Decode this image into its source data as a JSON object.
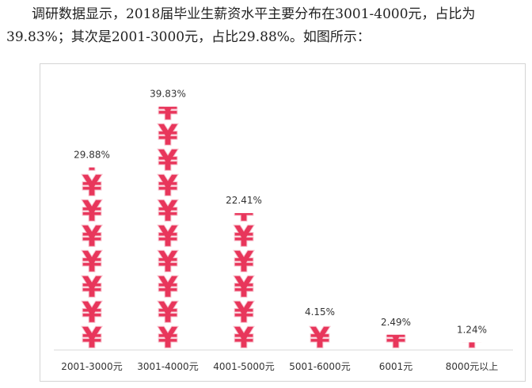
{
  "intro": {
    "text": "调研数据显示，2018届毕业生薪资水平主要分布在3001-4000元，占比为39.83%；其次是2001-3000元，占比29.88%。如图所示："
  },
  "chart_data": {
    "type": "bar",
    "title": "",
    "xlabel": "",
    "ylabel": "",
    "categories": [
      "2001-3000元",
      "3001-4000元",
      "4001-5000元",
      "5001-6000元",
      "6001元",
      "8000元以上"
    ],
    "values": [
      29.88,
      39.83,
      22.41,
      4.15,
      2.49,
      1.24
    ],
    "value_labels": [
      "29.88%",
      "39.83%",
      "22.41%",
      "4.15%",
      "2.49%",
      "1.24%"
    ],
    "unit_per_icon": 4.15,
    "ylim": [
      0,
      42
    ],
    "grid": false,
    "legend": "none",
    "bar_icon": "yen-icon",
    "colors": {
      "icon": "#e8365b",
      "icon_outline": "#f7c0cc",
      "axis": "#d9d9d9"
    }
  }
}
